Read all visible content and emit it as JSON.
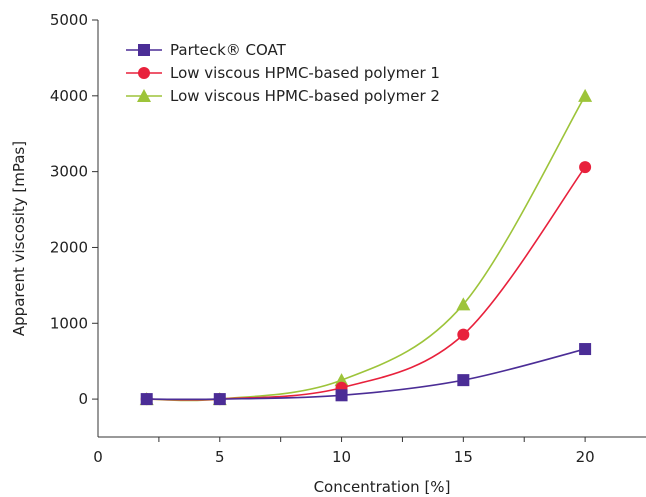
{
  "chart_data": {
    "type": "line",
    "title": "",
    "xlabel": "Concentration [%]",
    "ylabel": "Apparent viscosity [mPas]",
    "xlim": [
      0,
      22.5
    ],
    "ylim": [
      -500,
      5000
    ],
    "x_ticks": [
      0,
      5,
      10,
      15,
      20
    ],
    "y_ticks": [
      0,
      1000,
      2000,
      3000,
      4000,
      5000
    ],
    "grid": false,
    "legend_position": "top-left",
    "series": [
      {
        "name": "Parteck® COAT",
        "color": "#4b2d96",
        "marker": "square",
        "x": [
          2,
          5,
          10,
          15,
          20
        ],
        "y": [
          0,
          0,
          50,
          250,
          660
        ]
      },
      {
        "name": "Low viscous HPMC-based polymer 1",
        "color": "#e8213c",
        "marker": "circle",
        "x": [
          2,
          5,
          10,
          15,
          20
        ],
        "y": [
          0,
          0,
          150,
          850,
          3060
        ]
      },
      {
        "name": "Low viscous HPMC-based polymer 2",
        "color": "#9dc43a",
        "marker": "triangle",
        "x": [
          2,
          5,
          10,
          15,
          20
        ],
        "y": [
          0,
          0,
          250,
          1250,
          4000
        ]
      }
    ]
  }
}
